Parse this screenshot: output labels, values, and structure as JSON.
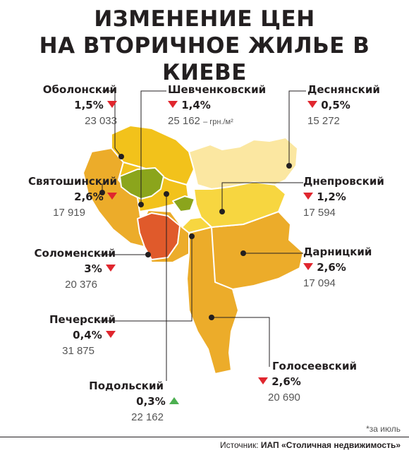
{
  "title": {
    "line1": "ИЗМЕНЕНИЕ ЦЕН",
    "line2": "НА ВТОРИЧНОЕ ЖИЛЬЕ В КИЕВЕ"
  },
  "unit": "– грн./м²",
  "districts": {
    "obolonsky": {
      "name": "Оболонский",
      "change": "1,5%",
      "direction": "down",
      "price": "23 033"
    },
    "shevchenkovsky": {
      "name": "Шевченковский",
      "change": "1,4%",
      "direction": "down",
      "price": "25 162"
    },
    "desnyansky": {
      "name": "Деснянский",
      "change": "0,5%",
      "direction": "down",
      "price": "15 272"
    },
    "svyatoshinsky": {
      "name": "Святошинский",
      "change": "2,6%",
      "direction": "down",
      "price": "17 919"
    },
    "dneprovsky": {
      "name": "Днепровский",
      "change": "1,2%",
      "direction": "down",
      "price": "17 594"
    },
    "solomensky": {
      "name": "Соломенский",
      "change": "3%",
      "direction": "down",
      "price": "20 376"
    },
    "darnitsky": {
      "name": "Дарницкий",
      "change": "2,6%",
      "direction": "down",
      "price": "17 094"
    },
    "pechersky": {
      "name": "Печерский",
      "change": "0,4%",
      "direction": "down",
      "price": "31 875"
    },
    "goloseevsky": {
      "name": "Голосеевский",
      "change": "2,6%",
      "direction": "down",
      "price": "20 690"
    },
    "podolsky": {
      "name": "Подольский",
      "change": "0,3%",
      "direction": "up",
      "price": "22 162"
    }
  },
  "colors": {
    "down": "#e0262e",
    "up": "#4caf50",
    "lightest": "#fbe7a1",
    "light": "#f7d640",
    "mid": "#f2c21b",
    "orange": "#ecac2a",
    "red": "#e05a2b",
    "green": "#8ba51c"
  },
  "footnote": "*за июль",
  "source": {
    "prefix": "Источник:",
    "name": "ИАП «Столичная недвижимость»"
  }
}
